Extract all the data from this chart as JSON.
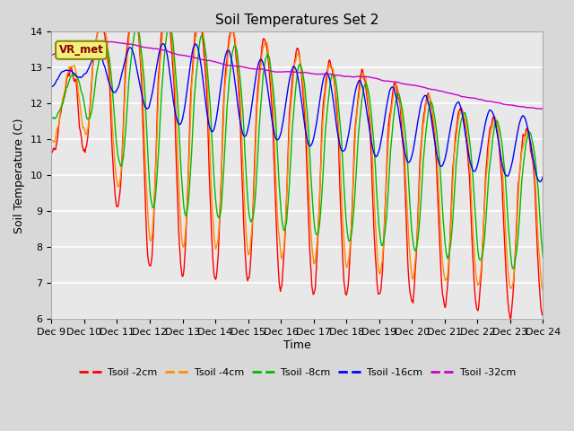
{
  "title": "Soil Temperatures Set 2",
  "xlabel": "Time",
  "ylabel": "Soil Temperature (C)",
  "ylim": [
    6.0,
    14.0
  ],
  "yticks": [
    6.0,
    7.0,
    8.0,
    9.0,
    10.0,
    11.0,
    12.0,
    13.0,
    14.0
  ],
  "xtick_labels": [
    "Dec 9",
    "Dec 10",
    "Dec 11",
    "Dec 12",
    "Dec 13",
    "Dec 14",
    "Dec 15",
    "Dec 16",
    "Dec 17",
    "Dec 18",
    "Dec 19",
    "Dec 20",
    "Dec 21",
    "Dec 22",
    "Dec 23",
    "Dec 24"
  ],
  "series_colors": {
    "Tsoil -2cm": "#ff0000",
    "Tsoil -4cm": "#ff8c00",
    "Tsoil -8cm": "#00bb00",
    "Tsoil -16cm": "#0000ff",
    "Tsoil -32cm": "#cc00cc"
  },
  "annotation_text": "VR_met",
  "fig_bg": "#d8d8d8",
  "ax_bg": "#e8e8e8",
  "grid_color": "#ffffff",
  "line_width": 1.0,
  "n_points": 720
}
